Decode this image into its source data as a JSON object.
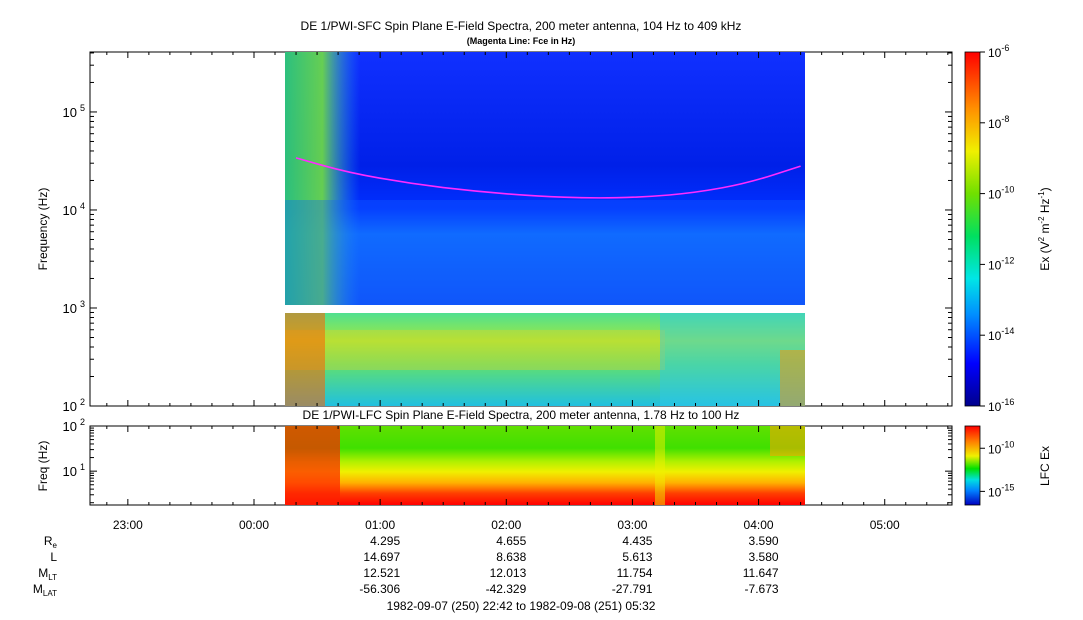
{
  "chart_data": [
    {
      "type": "heatmap",
      "title": "DE 1/PWI-SFC  Spin Plane E-Field Spectra, 200 meter antenna, 104 Hz to 409 kHz",
      "subtitle": "(Magenta Line: Fce in Hz)",
      "ylabel": "Frequency (Hz)",
      "yscale": "log",
      "ylim": [
        100,
        409000
      ],
      "y_ticks": [
        {
          "exp": "2",
          "label": "10"
        },
        {
          "exp": "3",
          "label": "10"
        },
        {
          "exp": "4",
          "label": "10"
        },
        {
          "exp": "5",
          "label": "10"
        }
      ],
      "colorbar": {
        "label": "Ex (V",
        "label_sup1": "2",
        "label_mid": " m",
        "label_sup2": "-2",
        "label_mid2": " Hz",
        "label_sup3": "-1",
        "label_end": ")",
        "scale": "log",
        "range": [
          1e-16,
          1e-06
        ],
        "colormap": "rainbow",
        "ticks": [
          {
            "base": "10",
            "exp": "-6"
          },
          {
            "base": "10",
            "exp": "-8"
          },
          {
            "base": "10",
            "exp": "-10"
          },
          {
            "base": "10",
            "exp": "-12"
          },
          {
            "base": "10",
            "exp": "-14"
          },
          {
            "base": "10",
            "exp": "-16"
          }
        ]
      },
      "data_start": "00:17",
      "data_end": "04:23",
      "data_gap_hz": 1000,
      "overlay_fce": {
        "name": "Fce",
        "color": "#ff2bff",
        "points": [
          {
            "t": "00:20",
            "hz": 34000
          },
          {
            "t": "00:45",
            "hz": 24000
          },
          {
            "t": "01:15",
            "hz": 18500
          },
          {
            "t": "01:45",
            "hz": 15500
          },
          {
            "t": "02:15",
            "hz": 13800
          },
          {
            "t": "02:40",
            "hz": 13200
          },
          {
            "t": "03:05",
            "hz": 13500
          },
          {
            "t": "03:30",
            "hz": 15000
          },
          {
            "t": "03:55",
            "hz": 18800
          },
          {
            "t": "04:20",
            "hz": 28000
          }
        ]
      }
    },
    {
      "type": "heatmap",
      "title": "DE 1/PWI-LFC  Spin Plane E-Field Spectra, 200 meter antenna, 1.78 Hz to 100 Hz",
      "ylabel": "Freq (Hz)",
      "yscale": "log",
      "ylim": [
        1.78,
        100
      ],
      "y_ticks": [
        {
          "exp": "1",
          "label": "10"
        },
        {
          "exp": "2",
          "label": "10"
        }
      ],
      "colorbar": {
        "label": "LFC Ex",
        "scale": "log",
        "range": [
          1e-16,
          1e-08
        ],
        "colormap": "rainbow",
        "ticks": [
          {
            "base": "10",
            "exp": "-10"
          },
          {
            "base": "10",
            "exp": "-15"
          }
        ]
      },
      "data_start": "00:17",
      "data_end": "04:23"
    }
  ],
  "time_axis": {
    "range": [
      "22:42",
      "05:32"
    ],
    "ticks": [
      "23:00",
      "00:00",
      "01:00",
      "02:00",
      "03:00",
      "04:00",
      "05:00"
    ]
  },
  "ephemeris": {
    "rows": [
      {
        "label": "R",
        "sub": "e",
        "values": [
          "4.295",
          "4.655",
          "4.435",
          "3.590"
        ]
      },
      {
        "label": "L",
        "sub": "",
        "values": [
          "14.697",
          "8.638",
          "5.613",
          "3.580"
        ]
      },
      {
        "label": "M",
        "sub": "LT",
        "values": [
          "12.521",
          "12.013",
          "11.754",
          "11.647"
        ]
      },
      {
        "label": "M",
        "sub": "LAT",
        "values": [
          "-56.306",
          "-42.329",
          "-27.791",
          "-7.673"
        ]
      }
    ],
    "at_times": [
      "01:00",
      "02:00",
      "03:00",
      "04:00"
    ]
  },
  "footer": "1982-09-07 (250) 22:42 to 1982-09-08 (251) 05:32"
}
